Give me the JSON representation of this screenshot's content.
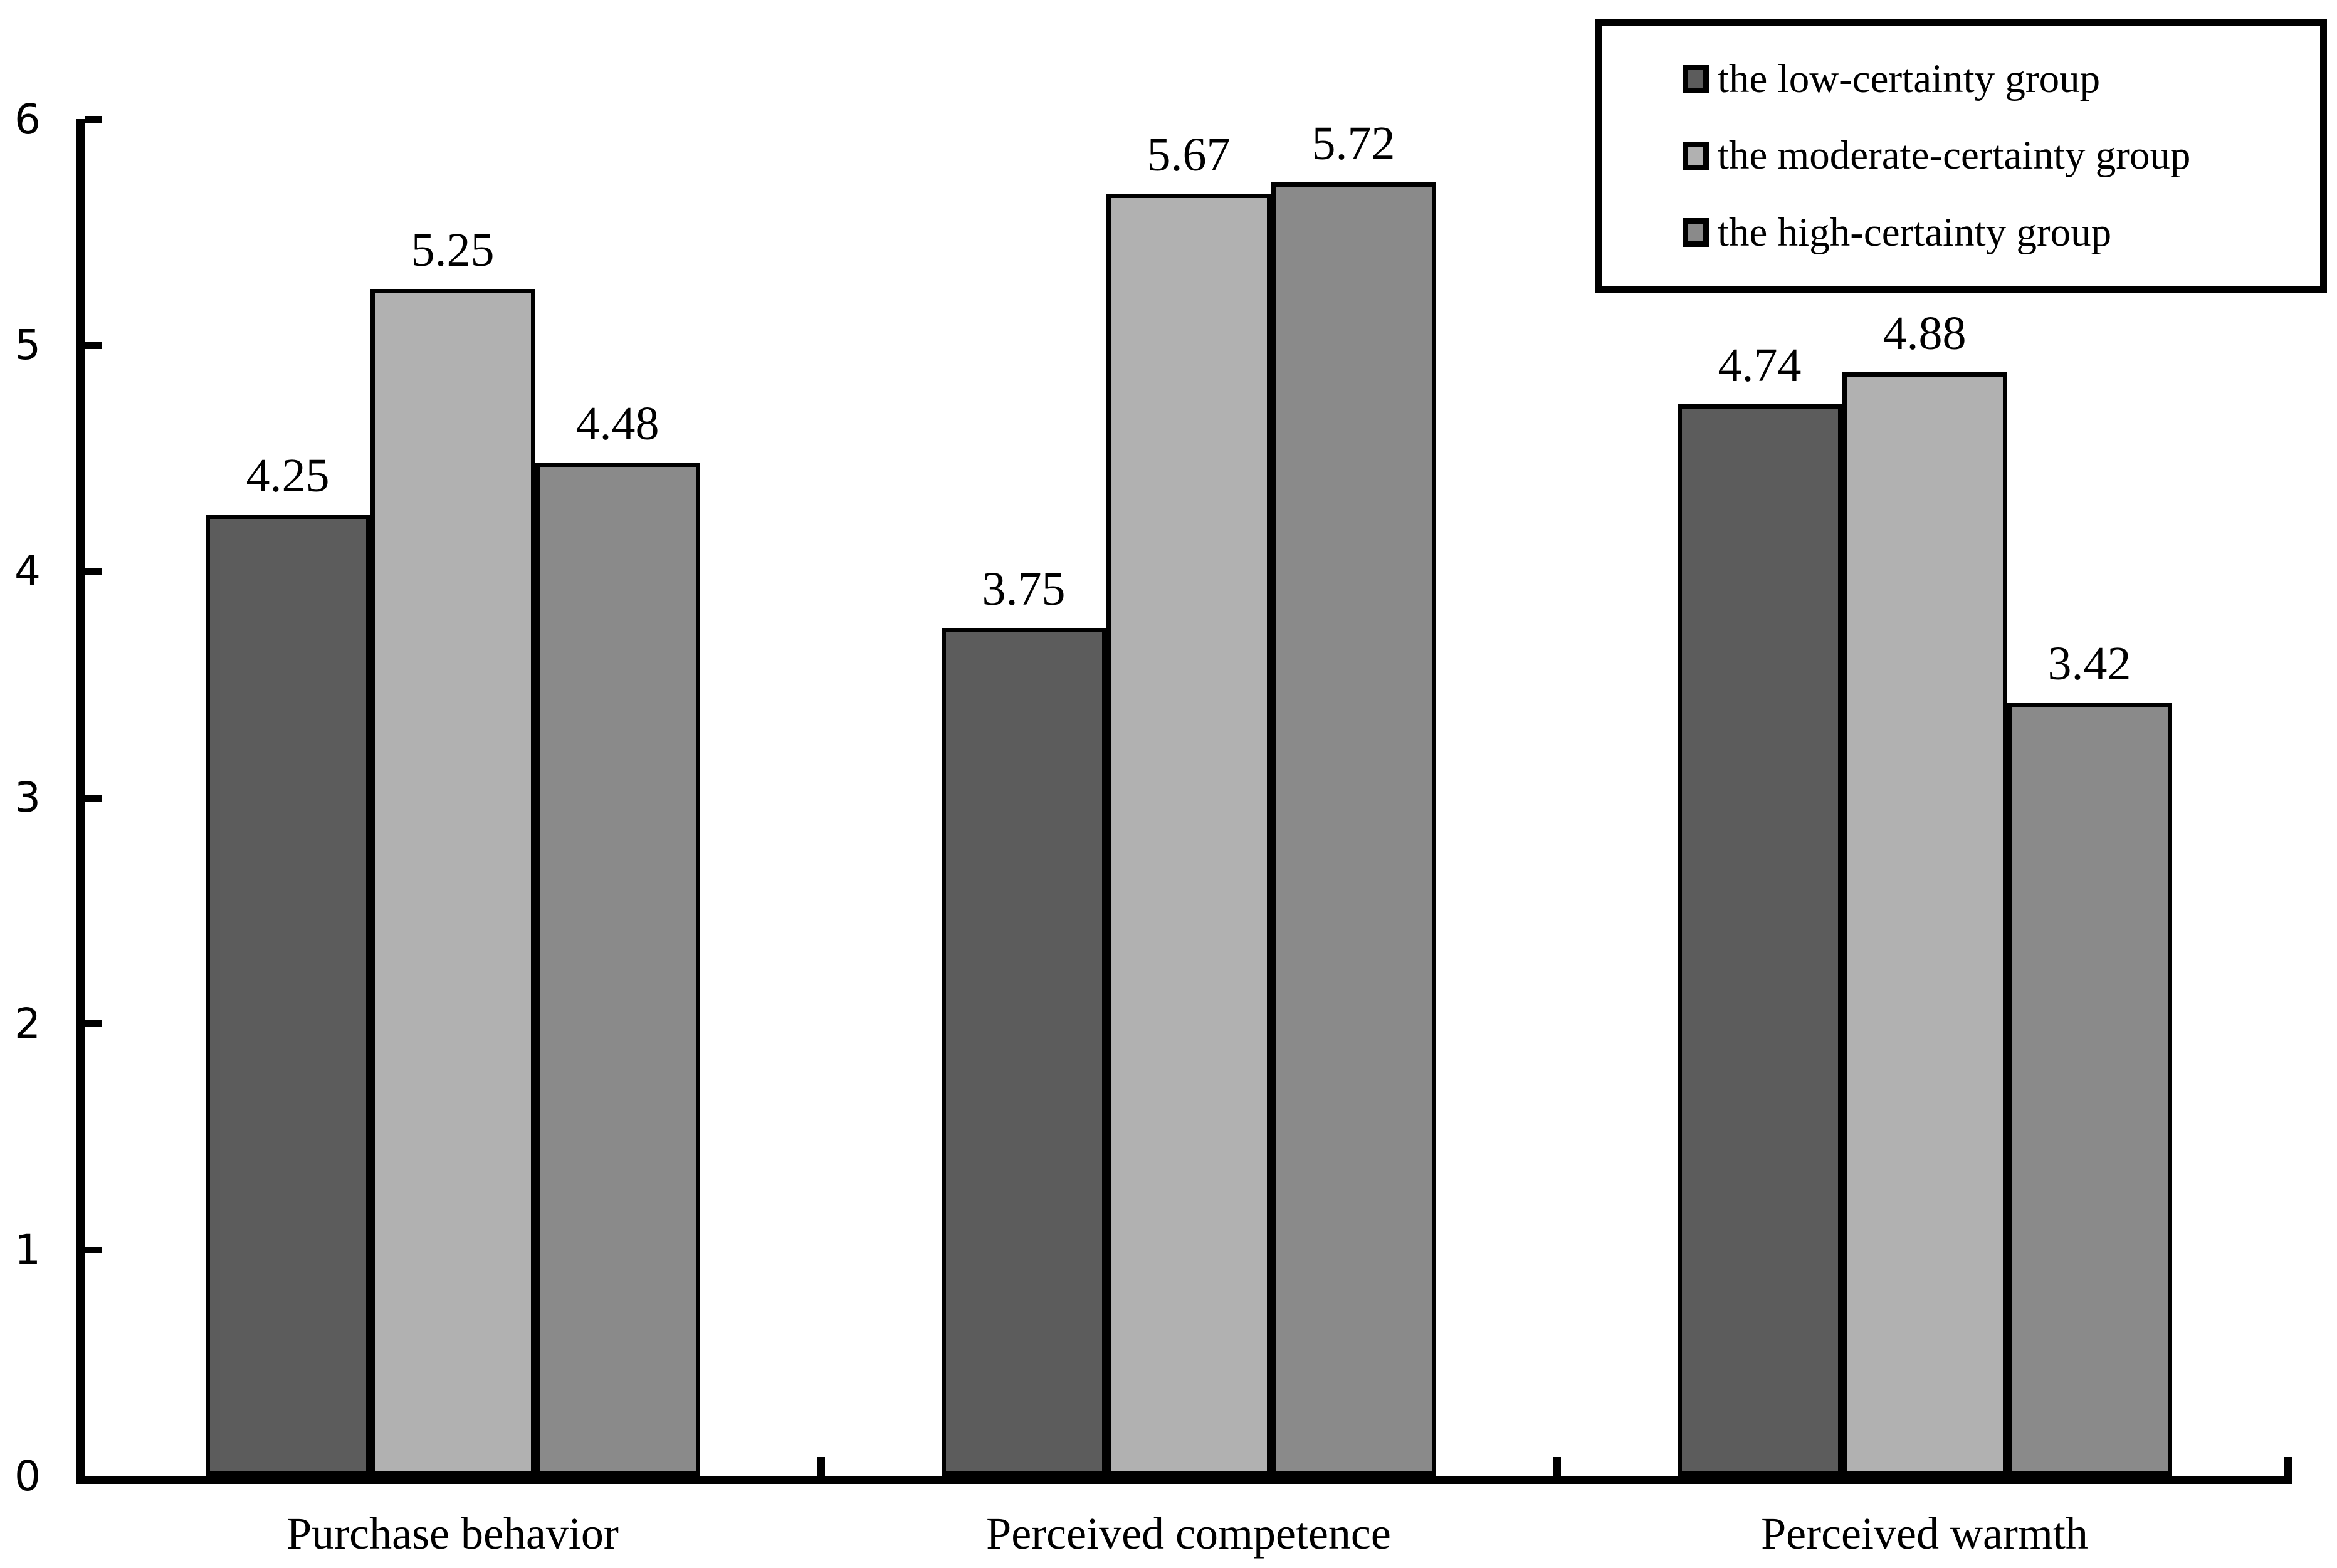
{
  "figure": {
    "background": "#ffffff",
    "axis_color": "#000000",
    "text_color": "#000000",
    "bar_outline_color": "#000000"
  },
  "legend": {
    "position": "top-right",
    "border_color": "#000000",
    "items": [
      {
        "label": "the low-certainty group",
        "swatch": "legend-swatch-dark-gray",
        "color": "#5c5c5c"
      },
      {
        "label": "the moderate-certainty group",
        "swatch": "legend-swatch-light-gray",
        "color": "#b1b1b1"
      },
      {
        "label": "the high-certainty group",
        "swatch": "legend-swatch-medium-gray",
        "color": "#8a8a8a"
      }
    ]
  },
  "chart_data": {
    "type": "bar",
    "title": "",
    "xlabel": "",
    "ylabel": "",
    "categories": [
      "Purchase behavior",
      "Perceived competence",
      "Perceived warmth"
    ],
    "series": [
      {
        "name": "the low-certainty group",
        "color": "#5c5c5c",
        "values": [
          4.25,
          3.75,
          4.74
        ],
        "labels": [
          "4.25",
          "3.75",
          "4.74"
        ]
      },
      {
        "name": "the moderate-certainty group",
        "color": "#b1b1b1",
        "values": [
          5.25,
          5.67,
          4.88
        ],
        "labels": [
          "5.25",
          "5.67",
          "4.88"
        ]
      },
      {
        "name": "the high-certainty group",
        "color": "#8a8a8a",
        "values": [
          4.48,
          5.72,
          3.42
        ],
        "labels": [
          "4.48",
          "5.72",
          "3.42"
        ]
      }
    ],
    "ylim": [
      0,
      6
    ],
    "yticks": [
      0,
      1,
      2,
      3,
      4,
      5,
      6
    ],
    "grid": false,
    "data_labels": true,
    "legend_position": "top-right"
  }
}
